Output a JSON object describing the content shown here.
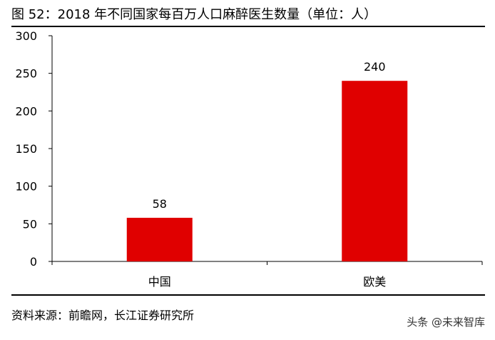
{
  "figure": {
    "title": "图 52：2018 年不同国家每百万人口麻醉医生数量（单位：人）",
    "source": "资料来源：前瞻网，长江证券研究所",
    "watermark": "头条 @未来智库"
  },
  "chart_data": {
    "type": "bar",
    "title": "2018 年不同国家每百万人口麻醉医生数量（单位：人）",
    "categories": [
      "中国",
      "欧美"
    ],
    "values": [
      58,
      240
    ],
    "data_labels": [
      "58",
      "240"
    ],
    "ylim": [
      0,
      300
    ],
    "yticks": [
      0,
      50,
      100,
      150,
      200,
      250,
      300
    ],
    "xlabel": "",
    "ylabel": "",
    "grid": false,
    "legend": "none",
    "bar_color": "#E00000"
  }
}
